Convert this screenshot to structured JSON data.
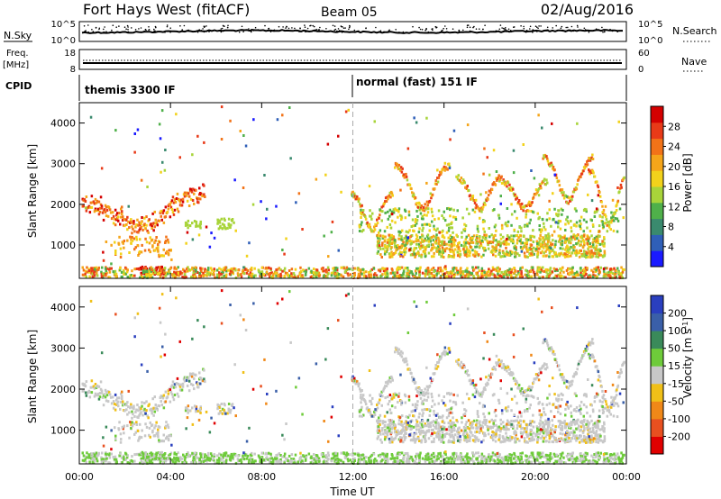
{
  "header": {
    "title": "Fort Hays West (fitACF)",
    "beam": "Beam 05",
    "date": "02/Aug/2016"
  },
  "strips": {
    "nsky": {
      "label": "N.Sky",
      "tick_top": "10^5",
      "tick_bottom": "10^0",
      "right_label": "N.Search",
      "right_tick_top": "10^5",
      "right_tick_bottom": "10^0"
    },
    "freq": {
      "label_line1": "Freq.",
      "label_line2": "[MHz]",
      "tick_top": "18",
      "tick_bottom": "8",
      "right_label": "Nave",
      "right_tick_top": "60",
      "right_tick_bottom": "0"
    },
    "cpid": {
      "label": "CPID",
      "modes": [
        {
          "name": "themis 3300 IF",
          "start_hour": 0
        },
        {
          "name": "normal (fast) 151 IF",
          "start_hour": 12
        }
      ]
    }
  },
  "chart_data": [
    {
      "type": "heatmap",
      "name": "Power",
      "xlabel": "Time UT",
      "ylabel": "Slant Range [km]",
      "xlim": [
        0,
        24
      ],
      "ylim": [
        180,
        4500
      ],
      "xtick_labels": [
        "00:00",
        "04:00",
        "08:00",
        "12:00",
        "16:00",
        "20:00",
        "00:00"
      ],
      "ytick_values": [
        1000,
        2000,
        3000,
        4000
      ],
      "colorbar": {
        "label": "Power [dB]",
        "range": [
          0,
          32
        ],
        "ticks": [
          4,
          8,
          12,
          16,
          20,
          24,
          28
        ],
        "colors": [
          "#1a1aff",
          "#2f5fb8",
          "#3a8a6e",
          "#4fb04a",
          "#a8d43a",
          "#f2d21b",
          "#f5a51a",
          "#f27318",
          "#e83a18",
          "#d40000"
        ]
      },
      "features": [
        {
          "x": [
            0.0,
            5.5
          ],
          "range": [
            1300,
            2300
          ],
          "desc": "arc"
        },
        {
          "x": [
            11.8,
            24.0
          ],
          "range": [
            700,
            3400
          ],
          "desc": "arcs"
        },
        {
          "x": [
            0.0,
            24.0
          ],
          "range": [
            180,
            400
          ],
          "desc": "ground scatter"
        }
      ]
    },
    {
      "type": "heatmap",
      "name": "Velocity",
      "xlabel": "Time UT",
      "ylabel": "Slant Range [km]",
      "xlim": [
        0,
        24
      ],
      "ylim": [
        180,
        4500
      ],
      "xtick_labels": [
        "00:00",
        "04:00",
        "08:00",
        "12:00",
        "16:00",
        "20:00",
        "00:00"
      ],
      "ytick_values": [
        1000,
        2000,
        3000,
        4000
      ],
      "colorbar": {
        "label": "Velocity [m s^-1]",
        "tick_labels": [
          "200",
          "100",
          "50",
          "15",
          "-15",
          "-50",
          "-100",
          "-200"
        ],
        "colors": [
          "#2a3fbf",
          "#3a5fa8",
          "#3a8a5a",
          "#6ecb3a",
          "#c8c8c8",
          "#f0c018",
          "#f08818",
          "#e85020",
          "#e00000"
        ]
      }
    }
  ]
}
